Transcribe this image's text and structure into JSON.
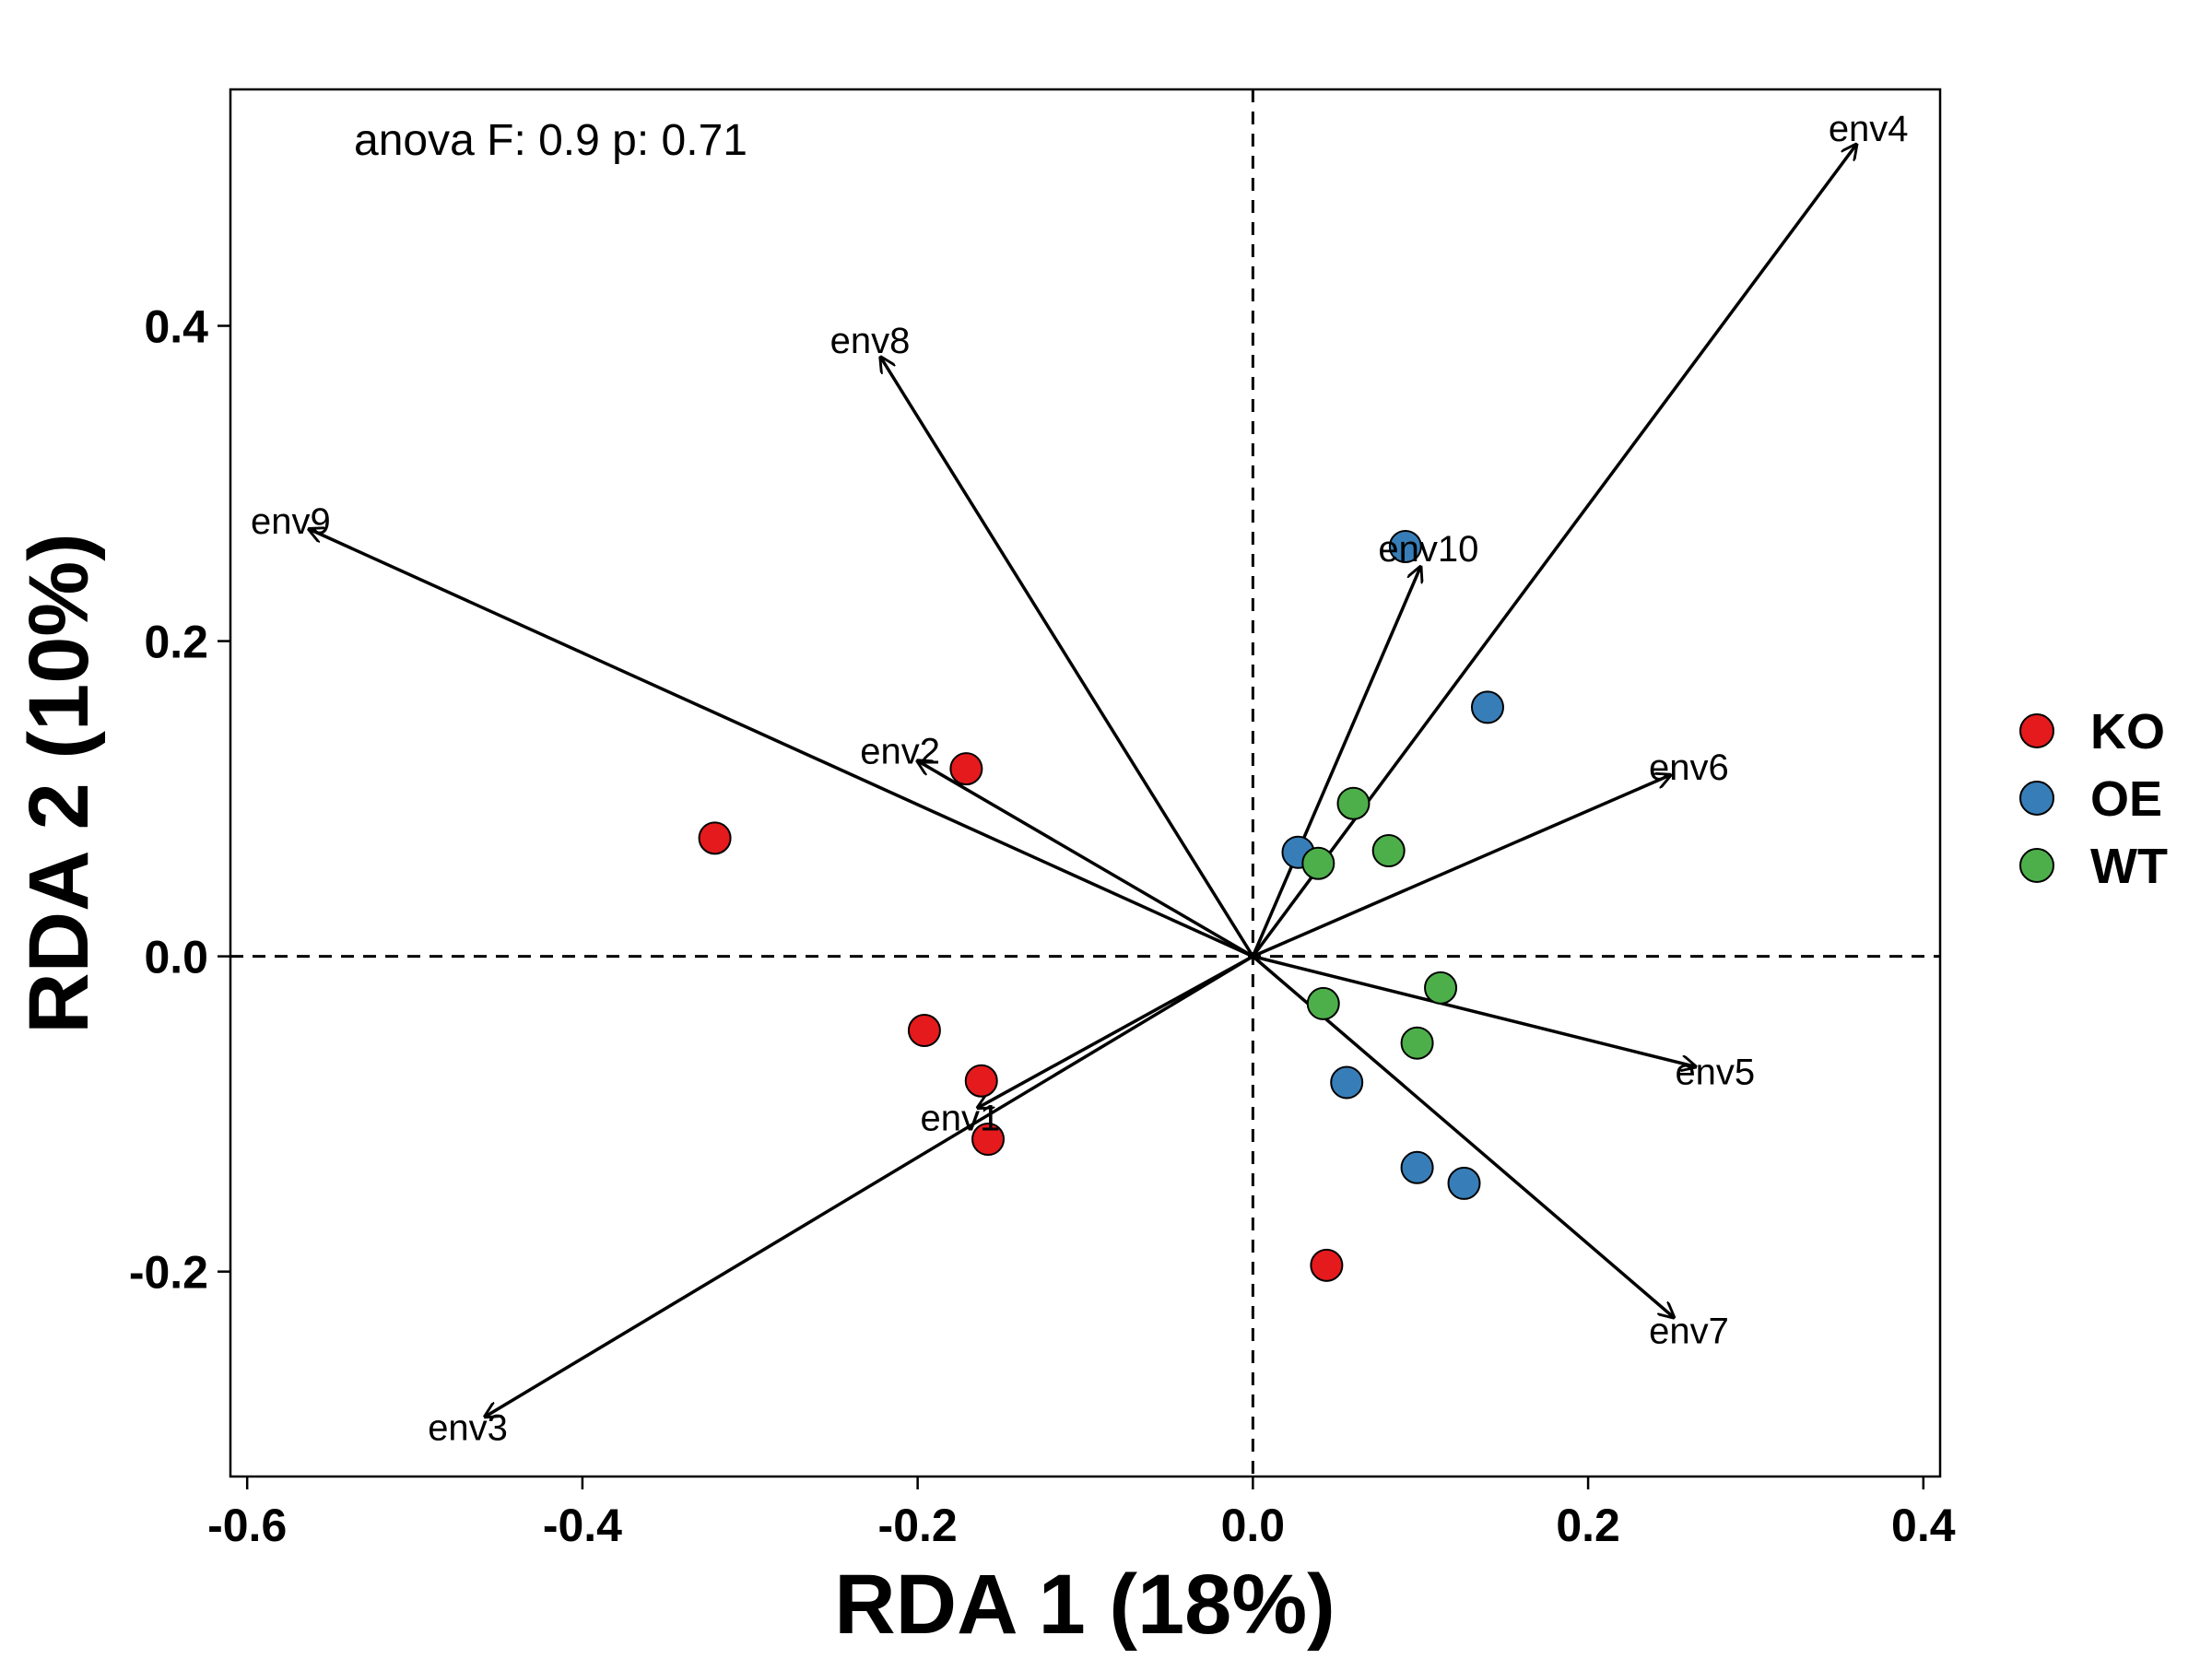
{
  "chart_data": {
    "type": "scatter",
    "annotation": "anova F: 0.9 p: 0.71",
    "xlabel": "RDA 1 (18%)",
    "ylabel": "RDA 2 (10%)",
    "xlim": [
      -0.61,
      0.41
    ],
    "ylim": [
      -0.33,
      0.55
    ],
    "xticks": [
      -0.6,
      -0.4,
      -0.2,
      0.0,
      0.2,
      0.4
    ],
    "xtick_labels": [
      "-0.6",
      "-0.4",
      "-0.2",
      "0.0",
      "0.2",
      "0.4"
    ],
    "yticks": [
      -0.2,
      0.0,
      0.2,
      0.4
    ],
    "ytick_labels": [
      "-0.2",
      "0.0",
      "0.2",
      "0.4"
    ],
    "grid": false,
    "reference_lines": {
      "x": 0,
      "y": 0,
      "style": "dashed"
    },
    "legend": {
      "position": "right"
    },
    "series": [
      {
        "name": "KO",
        "color": "#E41A1C",
        "points": [
          {
            "x": -0.321,
            "y": 0.075
          },
          {
            "x": -0.171,
            "y": 0.119
          },
          {
            "x": -0.196,
            "y": -0.047
          },
          {
            "x": -0.162,
            "y": -0.079
          },
          {
            "x": -0.158,
            "y": -0.116
          },
          {
            "x": 0.044,
            "y": -0.196
          }
        ]
      },
      {
        "name": "OE",
        "color": "#377EB8",
        "points": [
          {
            "x": 0.091,
            "y": 0.26
          },
          {
            "x": 0.14,
            "y": 0.158
          },
          {
            "x": 0.027,
            "y": 0.066
          },
          {
            "x": 0.056,
            "y": -0.08
          },
          {
            "x": 0.098,
            "y": -0.134
          },
          {
            "x": 0.126,
            "y": -0.144
          }
        ]
      },
      {
        "name": "WT",
        "color": "#4DAF4A",
        "points": [
          {
            "x": 0.06,
            "y": 0.097
          },
          {
            "x": 0.081,
            "y": 0.067
          },
          {
            "x": 0.039,
            "y": 0.059
          },
          {
            "x": 0.112,
            "y": -0.02
          },
          {
            "x": 0.042,
            "y": -0.03
          },
          {
            "x": 0.098,
            "y": -0.055
          }
        ]
      }
    ],
    "vectors": [
      {
        "label": "env1",
        "x": -0.164,
        "y": -0.096
      },
      {
        "label": "env2",
        "x": -0.2,
        "y": 0.124
      },
      {
        "label": "env3",
        "x": -0.458,
        "y": -0.292
      },
      {
        "label": "env4",
        "x": 0.36,
        "y": 0.515
      },
      {
        "label": "env5",
        "x": 0.264,
        "y": -0.07
      },
      {
        "label": "env6",
        "x": 0.249,
        "y": 0.115
      },
      {
        "label": "env7",
        "x": 0.251,
        "y": -0.229
      },
      {
        "label": "env8",
        "x": -0.222,
        "y": 0.38
      },
      {
        "label": "env9",
        "x": -0.563,
        "y": 0.271
      },
      {
        "label": "env10",
        "x": 0.1,
        "y": 0.247
      }
    ]
  }
}
